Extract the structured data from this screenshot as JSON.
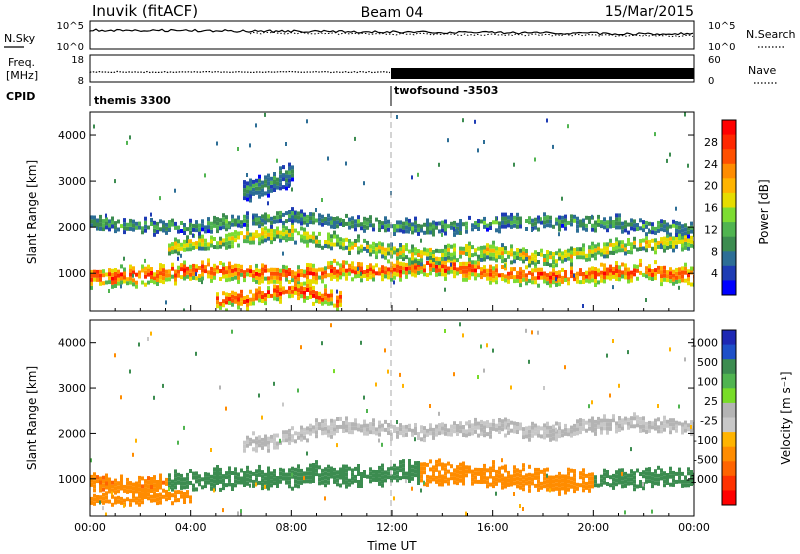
{
  "header": {
    "station": "Inuvik (fitACF)",
    "beam": "Beam 04",
    "date": "15/Mar/2015"
  },
  "top_panels": {
    "nsky_label": "N.Sky",
    "nsky_ticks": [
      "10^5",
      "10^0"
    ],
    "nsearch_label": "N.Search",
    "freq_label_1": "Freq.",
    "freq_label_2": "[MHz]",
    "freq_ticks": [
      "18",
      "8"
    ],
    "nave_label": "Nave",
    "nave_ticks": [
      "60",
      "0"
    ],
    "cpid_label": "CPID",
    "cpid_segments": [
      {
        "start_hour": 0,
        "label": "themis 3300"
      },
      {
        "start_hour": 12,
        "label": "twofsound -3503"
      }
    ]
  },
  "colorbars": {
    "power": {
      "label": "Power [dB]",
      "ticks": [
        "28",
        "24",
        "20",
        "16",
        "12",
        "8",
        "4"
      ],
      "colors": [
        "#ff0000",
        "#ff2800",
        "#ff5000",
        "#ff8c00",
        "#ffb400",
        "#e6dc00",
        "#7ddc32",
        "#50b450",
        "#3c8c50",
        "#2d6e96",
        "#1e3cb4",
        "#0000ff"
      ]
    },
    "velocity": {
      "label": "Velocity [m s⁻¹]",
      "ticks": [
        "1000",
        "500",
        "100",
        "25",
        "-25",
        "-100",
        "-500",
        "-1000"
      ],
      "colors": [
        "#1e28b4",
        "#1e50c8",
        "#3c8c50",
        "#50b450",
        "#78dc28",
        "#b4b4b4",
        "#c8c8c8",
        "#ffb400",
        "#ff8c00",
        "#ff6400",
        "#ff3200",
        "#ff0000"
      ]
    }
  },
  "chart_data": [
    {
      "type": "heatmap",
      "title": "",
      "xlabel": "Time UT",
      "ylabel": "Slant Range [km]",
      "x_ticks": [
        "00:00",
        "04:00",
        "08:00",
        "12:00",
        "16:00",
        "20:00",
        "00:00"
      ],
      "y_ticks": [
        "1000",
        "2000",
        "3000",
        "4000"
      ],
      "xlim": [
        0,
        24
      ],
      "ylim": [
        180,
        4500
      ],
      "quantity": "Power",
      "units": "dB",
      "bands": [
        {
          "x": [
            0,
            1,
            2,
            3,
            4,
            5,
            6,
            7,
            8,
            9,
            10,
            11,
            12,
            13,
            14,
            15,
            16,
            17,
            18,
            19,
            20,
            21,
            22,
            23,
            24
          ],
          "center": [
            900,
            880,
            900,
            950,
            1000,
            1050,
            1000,
            950,
            900,
            950,
            1050,
            1000,
            1050,
            1100,
            1100,
            1050,
            1000,
            950,
            900,
            900,
            950,
            1000,
            1000,
            950,
            900
          ],
          "width": 350,
          "value": 26
        },
        {
          "x": [
            3,
            4,
            5,
            6,
            7,
            8,
            9,
            10,
            11,
            12,
            13,
            14,
            15,
            16,
            17,
            18,
            19,
            20,
            21,
            22,
            23,
            24
          ],
          "center": [
            1500,
            1600,
            1650,
            1750,
            1800,
            1850,
            1700,
            1600,
            1550,
            1450,
            1350,
            1400,
            1450,
            1400,
            1350,
            1300,
            1350,
            1450,
            1550,
            1600,
            1650,
            1700
          ],
          "width": 300,
          "value": 18
        },
        {
          "x": [
            0,
            2,
            4,
            6,
            8,
            10,
            12,
            14,
            16,
            18,
            20,
            22,
            24
          ],
          "center": [
            2050,
            2000,
            1950,
            2100,
            2200,
            2100,
            2000,
            1950,
            2050,
            2100,
            2050,
            2000,
            1900
          ],
          "width": 250,
          "value": 11
        },
        {
          "x": [
            5,
            6,
            7,
            8,
            9,
            10
          ],
          "center": [
            350,
            400,
            500,
            600,
            500,
            350
          ],
          "width": 300,
          "value": 27
        },
        {
          "x": [
            6,
            7,
            8
          ],
          "center": [
            2700,
            2900,
            3100
          ],
          "width": 400,
          "value": 9
        }
      ]
    },
    {
      "type": "heatmap",
      "title": "",
      "xlabel": "Time UT",
      "ylabel": "Slant Range [km]",
      "x_ticks": [
        "00:00",
        "04:00",
        "08:00",
        "12:00",
        "16:00",
        "20:00",
        "00:00"
      ],
      "y_ticks": [
        "1000",
        "2000",
        "3000",
        "4000"
      ],
      "xlim": [
        0,
        24
      ],
      "ylim": [
        180,
        4500
      ],
      "quantity": "Velocity",
      "units": "m s-1",
      "bands": [
        {
          "x": [
            0,
            1,
            2,
            3
          ],
          "center": [
            900,
            850,
            800,
            900
          ],
          "width": 350,
          "value": -250
        },
        {
          "x": [
            3,
            4,
            5,
            6,
            7,
            8,
            9,
            10,
            11,
            12,
            13
          ],
          "center": [
            900,
            950,
            950,
            1000,
            1000,
            1000,
            1050,
            1050,
            1000,
            1050,
            1100
          ],
          "width": 400,
          "value": 150
        },
        {
          "x": [
            13,
            14,
            15,
            16,
            17,
            18,
            19,
            20
          ],
          "center": [
            1100,
            1100,
            1050,
            1050,
            1000,
            950,
            900,
            900
          ],
          "width": 450,
          "value": -200
        },
        {
          "x": [
            20,
            21,
            22,
            23,
            24
          ],
          "center": [
            900,
            950,
            1000,
            1000,
            950
          ],
          "width": 350,
          "value": 150
        },
        {
          "x": [
            6,
            7,
            8,
            9,
            10,
            11,
            12,
            13,
            14,
            15,
            16,
            17,
            18,
            19,
            20,
            21,
            22,
            23,
            24
          ],
          "center": [
            1700,
            1800,
            1900,
            2050,
            2150,
            2100,
            2050,
            2000,
            2050,
            2100,
            2100,
            2050,
            2000,
            2050,
            2150,
            2200,
            2200,
            2150,
            2100
          ],
          "width": 300,
          "value": 0
        },
        {
          "x": [
            0,
            1,
            2,
            3,
            4
          ],
          "center": [
            550,
            500,
            500,
            550,
            600
          ],
          "width": 200,
          "value": -200
        }
      ]
    }
  ]
}
